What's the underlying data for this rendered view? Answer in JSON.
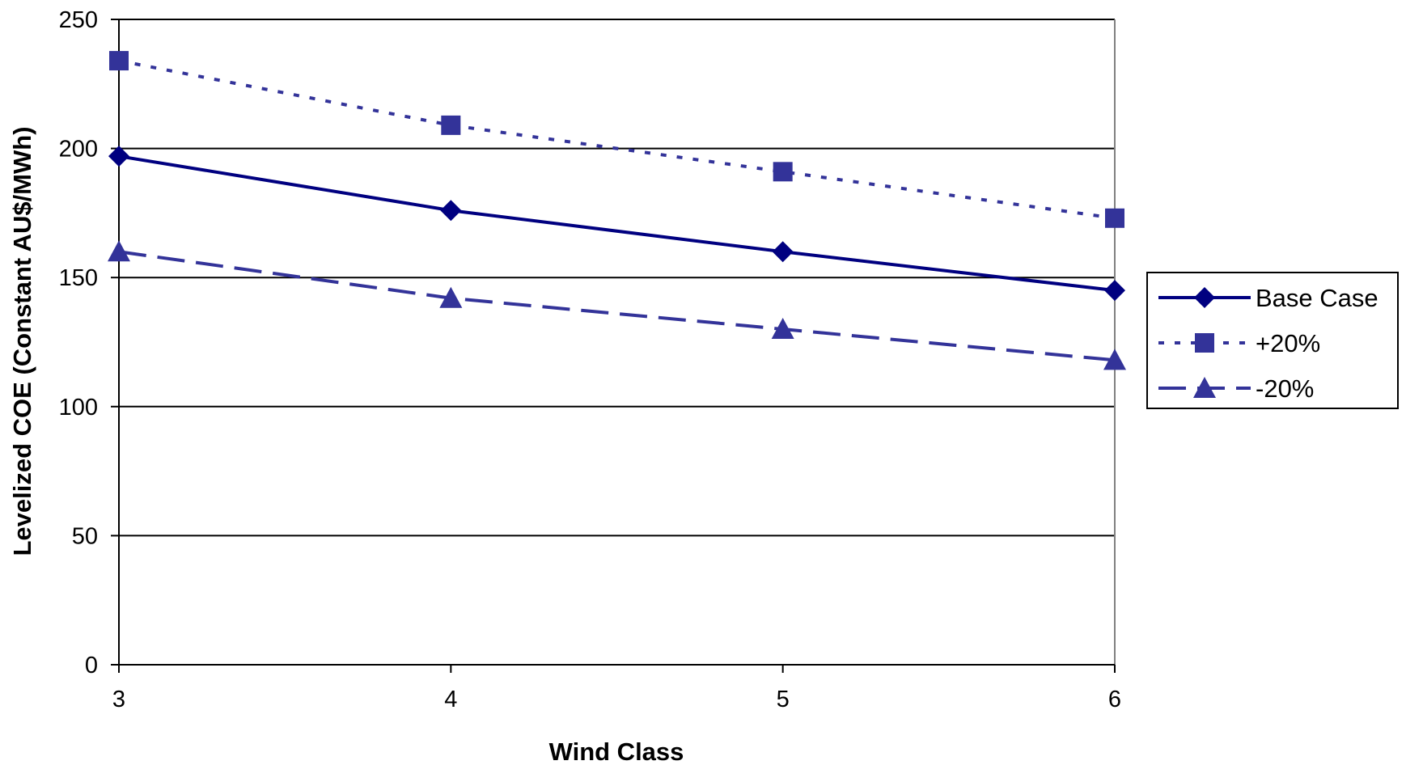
{
  "chart_data": {
    "type": "line",
    "title": "",
    "xlabel": "Wind Class",
    "ylabel": "Levelized COE (Constant AU$/MWh)",
    "x": [
      3,
      4,
      5,
      6
    ],
    "xlim": [
      3,
      6
    ],
    "ylim": [
      0,
      250
    ],
    "xticks": [
      "3",
      "4",
      "5",
      "6"
    ],
    "yticks": [
      "0",
      "50",
      "100",
      "150",
      "200",
      "250"
    ],
    "yticks_values": [
      0,
      50,
      100,
      150,
      200,
      250
    ],
    "grid": "horizontal",
    "legend_position": "right",
    "series": [
      {
        "name": "Base Case",
        "values": [
          197,
          176,
          160,
          145
        ],
        "color": "#000080",
        "marker": "diamond",
        "line": "solid"
      },
      {
        "name": "+20%",
        "values": [
          234,
          209,
          191,
          173
        ],
        "color": "#333399",
        "marker": "square",
        "line": "dotted"
      },
      {
        "name": "-20%",
        "values": [
          160,
          142,
          130,
          118
        ],
        "color": "#333399",
        "marker": "triangle",
        "line": "dashed"
      }
    ]
  }
}
